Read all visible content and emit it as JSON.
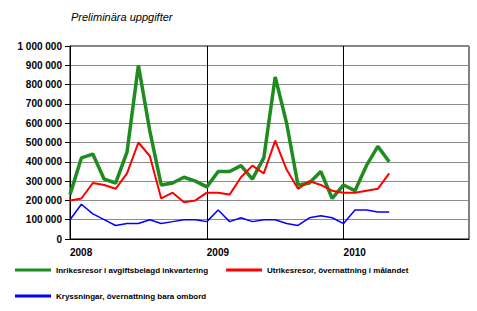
{
  "chart_data": {
    "type": "line",
    "title": "Preliminära uppgifter",
    "categories": [
      "2008",
      null,
      null,
      null,
      null,
      null,
      null,
      null,
      null,
      null,
      null,
      null,
      "2009",
      null,
      null,
      null,
      null,
      null,
      null,
      null,
      null,
      null,
      null,
      null,
      "2010",
      null,
      null,
      null,
      null,
      null,
      null,
      null,
      null,
      null,
      null,
      null
    ],
    "series": [
      {
        "name": "Inrikesresor i avgiftsbelagd inkvartering",
        "color": "#1e8c1e",
        "values": [
          230000,
          420000,
          440000,
          310000,
          290000,
          450000,
          900000,
          560000,
          280000,
          290000,
          320000,
          300000,
          270000,
          350000,
          350000,
          380000,
          310000,
          420000,
          840000,
          600000,
          280000,
          290000,
          350000,
          210000,
          280000,
          250000,
          380000,
          480000,
          400000,
          null,
          null,
          null,
          null,
          null,
          null,
          null
        ]
      },
      {
        "name": "Utrikesresor, övernattning i målandet",
        "color": "#ff0000",
        "values": [
          200000,
          210000,
          290000,
          280000,
          260000,
          340000,
          500000,
          430000,
          210000,
          240000,
          190000,
          200000,
          240000,
          240000,
          230000,
          320000,
          380000,
          340000,
          510000,
          360000,
          260000,
          300000,
          280000,
          250000,
          240000,
          240000,
          250000,
          260000,
          340000,
          null,
          null,
          null,
          null,
          null,
          null,
          null
        ]
      },
      {
        "name": "Kryssningar, övernattning bara ombord",
        "color": "#0000ff",
        "values": [
          100000,
          180000,
          130000,
          100000,
          70000,
          80000,
          80000,
          100000,
          80000,
          90000,
          100000,
          100000,
          90000,
          150000,
          90000,
          110000,
          90000,
          100000,
          100000,
          80000,
          70000,
          110000,
          120000,
          110000,
          80000,
          150000,
          150000,
          140000,
          140000,
          null,
          null,
          null,
          null,
          null,
          null,
          null
        ]
      }
    ],
    "ylim": [
      0,
      1000000
    ],
    "yticks": [
      0,
      {
        "value": 100000,
        "label": "100 000"
      },
      {
        "value": 200000,
        "label": "200 000"
      },
      {
        "value": 300000,
        "label": "300 000"
      },
      {
        "value": 400000,
        "label": "400 000"
      },
      {
        "value": 500000,
        "label": "500 000"
      },
      {
        "value": 600000,
        "label": "600 000"
      },
      {
        "value": 700000,
        "label": "700 000"
      },
      {
        "value": 800000,
        "label": "800 000"
      },
      {
        "value": 900000,
        "label": "900 000"
      },
      {
        "value": 1000000,
        "label": "1 000 000"
      }
    ],
    "grid": true,
    "legend": "bottom"
  }
}
